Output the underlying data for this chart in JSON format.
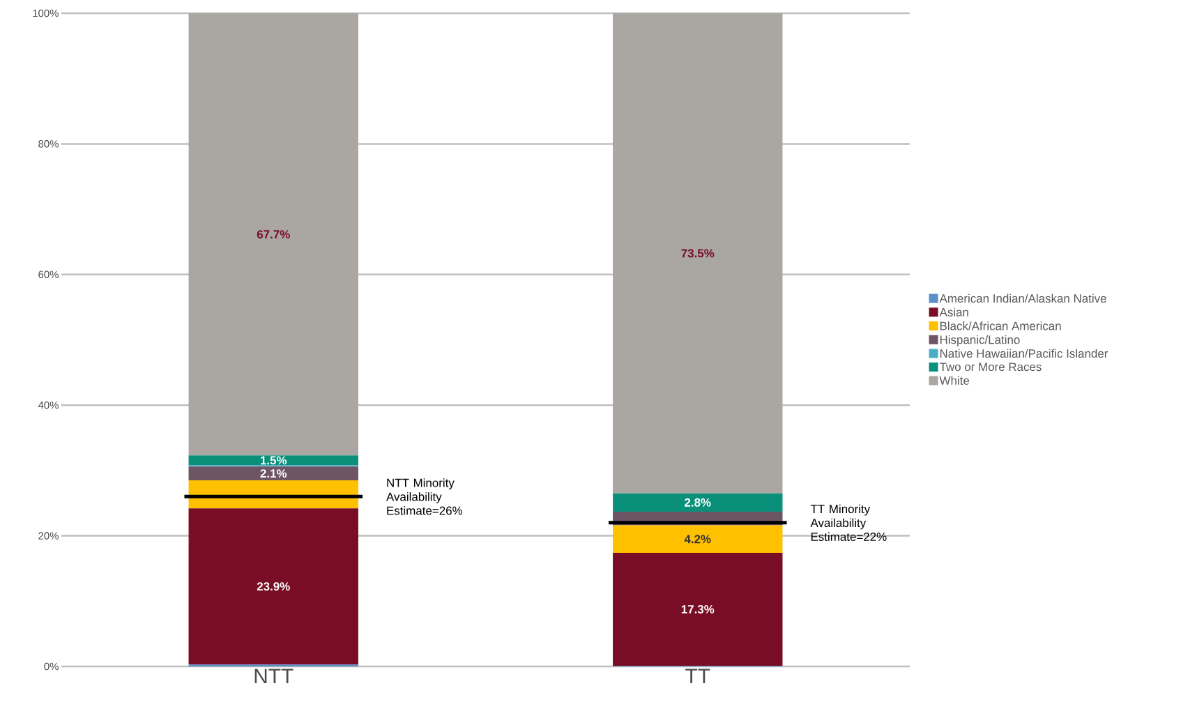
{
  "chart_data": {
    "type": "bar",
    "stacked": true,
    "categories": [
      "NTT",
      "TT"
    ],
    "series": [
      {
        "name": "American Indian/Alaskan Native",
        "color": "#5b8fc7",
        "values": [
          0.3,
          0.1
        ],
        "value_labels": [
          null,
          null
        ]
      },
      {
        "name": "Asian",
        "color": "#7a0d26",
        "values": [
          23.9,
          17.3
        ],
        "value_labels": [
          "23.9%",
          "17.3%"
        ]
      },
      {
        "name": "Black/African American",
        "color": "#ffc000",
        "values": [
          4.3,
          4.2
        ],
        "value_labels": [
          null,
          "4.2%"
        ]
      },
      {
        "name": "Hispanic/Latino",
        "color": "#6e5566",
        "values": [
          2.1,
          2.1
        ],
        "value_labels": [
          "2.1%",
          null
        ]
      },
      {
        "name": "Native Hawaiian/Pacific Islander",
        "color": "#4bacc6",
        "values": [
          0.2,
          0.0
        ],
        "value_labels": [
          null,
          null
        ]
      },
      {
        "name": "Two or More Races",
        "color": "#0a907a",
        "values": [
          1.5,
          2.8
        ],
        "value_labels": [
          "1.5%",
          "2.8%"
        ]
      },
      {
        "name": "White",
        "color": "#aaa6a2",
        "values": [
          67.7,
          73.5
        ],
        "value_labels": [
          "67.7%",
          "73.5%"
        ]
      }
    ],
    "ylim": [
      0,
      100
    ],
    "yticks": [
      {
        "value": 0,
        "label": "0%"
      },
      {
        "value": 20,
        "label": "20%"
      },
      {
        "value": 40,
        "label": "40%"
      },
      {
        "value": 60,
        "label": "60%"
      },
      {
        "value": 80,
        "label": "80%"
      },
      {
        "value": 100,
        "label": "100%"
      }
    ],
    "grid": "y",
    "legend": "right",
    "ref_lines": [
      {
        "axis": "y",
        "value": 26,
        "label": "NTT Minority Availability Estimate=26%",
        "color": "#000000"
      },
      {
        "axis": "y",
        "value": 22,
        "label": "TT Minority Availability Estimate=22%",
        "color": "#000000"
      }
    ]
  }
}
